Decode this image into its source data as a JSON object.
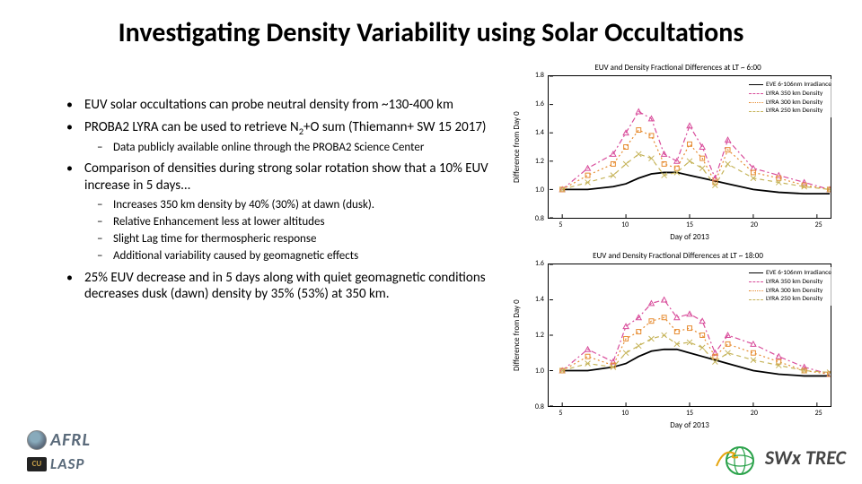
{
  "title": "Investigating Density Variability using Solar Occultations",
  "bullets": {
    "b0": "EUV solar occultations can probe neutral density from ~130-400 km",
    "b1_pre": "PROBA2 LYRA can be used to retrieve N",
    "b1_sub": "2",
    "b1_post": "+O sum (Thiemann+ SW 15 2017)",
    "b1s0": "Data publicly available online through the PROBA2 Science Center",
    "b2": "Comparison of densities during strong solar rotation show that a 10% EUV increase in 5 days...",
    "b2s0": "Increases 350 km density by 40% (30%) at dawn (dusk).",
    "b2s1": "Relative Enhancement less at lower altitudes",
    "b2s2": "Slight Lag time for thermospheric response",
    "b2s3": "Additional variability caused by geomagnetic effects",
    "b3": "25% EUV decrease and in 5 days along with quiet geomagnetic conditions decreases dusk (dawn) density by 35% (53%) at 350 km."
  },
  "logos": {
    "afrl": "AFRL",
    "cu": "CU",
    "lasp": "LASP",
    "swxtrec": "SWx TREC"
  },
  "charts": {
    "common": {
      "ylabel": "Difference from Day 0",
      "xlabel": "Day of 2013",
      "xlim": [
        4,
        26
      ],
      "xticks": [
        5,
        10,
        15,
        20,
        25
      ],
      "legend": [
        {
          "label": "EVE 6-106nm Irradiance",
          "color": "#000000",
          "style": "solid",
          "marker": "none"
        },
        {
          "label": "LYRA 350 km Density",
          "color": "#d84b9a",
          "style": "dashdot",
          "marker": "triangle"
        },
        {
          "label": "LYRA 300 km Density",
          "color": "#e68a2e",
          "style": "dotted",
          "marker": "square"
        },
        {
          "label": "LYRA 250 km Density",
          "color": "#c5b358",
          "style": "dashed",
          "marker": "x"
        }
      ],
      "colors": {
        "axis": "#000000",
        "bg": "#ffffff"
      },
      "fontsize": {
        "title": 9,
        "axis": 9,
        "tick": 8,
        "legend": 7.5
      }
    },
    "top": {
      "title": "EUV and Density Fractional Differences at LT ~ 6:00",
      "ylim": [
        0.8,
        1.8
      ],
      "yticks": [
        0.8,
        1.0,
        1.2,
        1.4,
        1.6,
        1.8
      ],
      "series": {
        "eve": {
          "x": [
            5,
            7,
            9,
            10,
            11,
            12,
            13,
            14,
            15,
            16,
            17,
            18,
            20,
            22,
            24,
            26
          ],
          "y": [
            1.0,
            1.0,
            1.02,
            1.04,
            1.08,
            1.11,
            1.12,
            1.12,
            1.1,
            1.08,
            1.06,
            1.04,
            1.0,
            0.98,
            0.97,
            0.97
          ]
        },
        "l350": {
          "x": [
            5,
            7,
            9,
            10,
            11,
            12,
            13,
            14,
            15,
            16,
            17,
            18,
            20,
            22,
            24,
            26
          ],
          "y": [
            1.0,
            1.15,
            1.25,
            1.4,
            1.55,
            1.5,
            1.25,
            1.2,
            1.45,
            1.3,
            1.08,
            1.35,
            1.15,
            1.1,
            1.05,
            1.0
          ]
        },
        "l300": {
          "x": [
            5,
            7,
            9,
            10,
            11,
            12,
            13,
            14,
            15,
            16,
            17,
            18,
            20,
            22,
            24,
            26
          ],
          "y": [
            1.0,
            1.1,
            1.18,
            1.3,
            1.42,
            1.38,
            1.18,
            1.15,
            1.32,
            1.22,
            1.05,
            1.28,
            1.12,
            1.08,
            1.03,
            1.0
          ]
        },
        "l250": {
          "x": [
            5,
            7,
            9,
            10,
            11,
            12,
            13,
            14,
            15,
            16,
            17,
            18,
            20,
            22,
            24,
            26
          ],
          "y": [
            1.0,
            1.05,
            1.1,
            1.18,
            1.25,
            1.22,
            1.1,
            1.12,
            1.2,
            1.15,
            1.03,
            1.18,
            1.08,
            1.05,
            1.02,
            1.0
          ]
        }
      }
    },
    "bottom": {
      "title": "EUV and Density Fractional Differences at LT ~ 18:00",
      "ylim": [
        0.8,
        1.6
      ],
      "yticks": [
        0.8,
        1.0,
        1.2,
        1.4,
        1.6
      ],
      "series": {
        "eve": {
          "x": [
            5,
            7,
            9,
            10,
            11,
            12,
            13,
            14,
            15,
            16,
            17,
            18,
            20,
            22,
            24,
            26
          ],
          "y": [
            1.0,
            1.0,
            1.02,
            1.04,
            1.08,
            1.11,
            1.12,
            1.12,
            1.1,
            1.08,
            1.06,
            1.04,
            1.0,
            0.98,
            0.97,
            0.97
          ]
        },
        "l350": {
          "x": [
            5,
            7,
            9,
            10,
            11,
            12,
            13,
            14,
            15,
            16,
            17,
            18,
            20,
            22,
            24,
            26
          ],
          "y": [
            1.0,
            1.12,
            1.05,
            1.25,
            1.3,
            1.38,
            1.4,
            1.3,
            1.32,
            1.28,
            1.1,
            1.2,
            1.15,
            1.08,
            1.02,
            0.98
          ]
        },
        "l300": {
          "x": [
            5,
            7,
            9,
            10,
            11,
            12,
            13,
            14,
            15,
            16,
            17,
            18,
            20,
            22,
            24,
            26
          ],
          "y": [
            1.0,
            1.08,
            1.03,
            1.18,
            1.22,
            1.28,
            1.3,
            1.22,
            1.24,
            1.2,
            1.08,
            1.15,
            1.1,
            1.05,
            1.0,
            0.98
          ]
        },
        "l250": {
          "x": [
            5,
            7,
            9,
            10,
            11,
            12,
            13,
            14,
            15,
            16,
            17,
            18,
            20,
            22,
            24,
            26
          ],
          "y": [
            1.0,
            1.04,
            1.02,
            1.1,
            1.14,
            1.18,
            1.2,
            1.15,
            1.16,
            1.13,
            1.05,
            1.1,
            1.06,
            1.03,
            1.0,
            0.99
          ]
        }
      }
    }
  }
}
